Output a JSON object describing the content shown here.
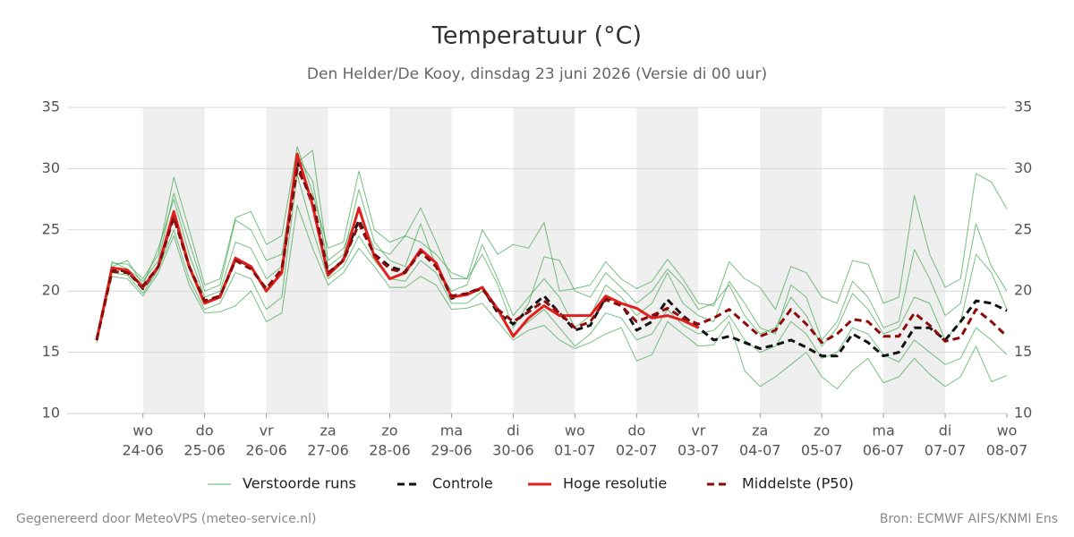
{
  "chart_data": {
    "type": "line",
    "title": "Temperatuur (°C)",
    "subtitle": "Den Helder/De Kooy, dinsdag 23 juni 2026 (Versie di 00 uur)",
    "footer_left": "Gegenereerd door MeteoVPS (meteo-service.nl)",
    "footer_right": "Bron: ECMWF AIFS/KNMI Ens",
    "categories": [
      null,
      null,
      null,
      "24-06",
      null,
      null,
      null,
      "25-06",
      null,
      null,
      null,
      "26-06",
      null,
      null,
      null,
      "27-06",
      null,
      null,
      null,
      "28-06",
      null,
      null,
      null,
      "29-06",
      null,
      null,
      null,
      "30-06",
      null,
      null,
      null,
      "01-07",
      null,
      null,
      null,
      "02-07",
      null,
      null,
      null,
      "03-07",
      null,
      null,
      null,
      "04-07",
      null,
      null,
      null,
      "05-07",
      null,
      null,
      null,
      "06-07",
      null,
      null,
      null,
      "07-07",
      null,
      null,
      null,
      "08-07"
    ],
    "weekdays": [
      null,
      null,
      null,
      "wo",
      null,
      null,
      null,
      "do",
      null,
      null,
      null,
      "vr",
      null,
      null,
      null,
      "za",
      null,
      null,
      null,
      "zo",
      null,
      null,
      null,
      "ma",
      null,
      null,
      null,
      "di",
      null,
      null,
      null,
      "wo",
      null,
      null,
      null,
      "do",
      null,
      null,
      null,
      "vr",
      null,
      null,
      null,
      "za",
      null,
      null,
      null,
      "zo",
      null,
      null,
      null,
      "ma",
      null,
      null,
      null,
      "di",
      null,
      null,
      null,
      "wo"
    ],
    "ylim": [
      10,
      35
    ],
    "yticks": [
      10,
      15,
      20,
      25,
      30,
      35
    ],
    "grid": true,
    "ensemble": {
      "name": "Verstoorde runs",
      "color": "#2f9e3f",
      "members": [
        [
          16,
          22.3,
          22.2,
          21,
          23,
          29.3,
          25,
          20.5,
          21,
          26,
          26.5,
          23.8,
          24.5,
          31.8,
          28,
          23.5,
          24,
          29.8,
          25,
          24,
          24.5,
          26.8,
          24,
          21,
          21,
          25,
          23,
          23.8,
          23.5,
          25.6,
          20,
          20.2,
          20.5,
          22.4,
          21,
          20.2,
          20.8,
          22.6,
          21,
          19,
          18.8,
          22.4,
          21,
          20.3,
          18.5,
          22,
          21.5,
          19.5,
          19,
          22.5,
          22.2,
          19,
          19.5,
          27.8,
          23,
          20.3,
          21,
          29.6,
          28.9,
          26.7
        ],
        [
          15.8,
          21.2,
          21,
          19.6,
          21.5,
          24.5,
          20.5,
          18.2,
          18.3,
          18.8,
          20,
          17.5,
          18.2,
          27,
          23.5,
          20.5,
          21.5,
          23.5,
          22,
          20.3,
          20.3,
          21.2,
          20.5,
          18.5,
          18.6,
          19,
          17.5,
          16,
          16.8,
          17.2,
          16,
          15.3,
          15.8,
          16.5,
          17,
          14.3,
          14.8,
          17.5,
          16.5,
          15.5,
          15.6,
          17.5,
          13.5,
          12.2,
          13,
          14,
          15,
          13,
          12,
          13.5,
          14.5,
          12.5,
          13,
          14.5,
          13.2,
          12.2,
          13,
          15.5,
          12.6,
          13.1
        ],
        [
          16.2,
          22,
          22.5,
          20.5,
          23.5,
          27.5,
          23,
          19.5,
          20,
          24,
          23.5,
          21,
          22,
          31,
          29,
          22,
          23,
          28.3,
          24,
          22.5,
          22,
          25.5,
          22,
          20,
          20.5,
          23.8,
          21,
          18,
          19.5,
          21,
          19.5,
          17,
          18,
          20.5,
          19.5,
          18,
          19,
          21.5,
          19,
          18,
          17.5,
          20.8,
          19,
          17,
          16.5,
          20.5,
          19.5,
          16,
          17.5,
          20.8,
          19.5,
          17,
          17.5,
          23.4,
          21,
          18,
          19,
          25.5,
          22,
          20
        ],
        [
          15.9,
          21.5,
          21.3,
          19.8,
          21.8,
          25,
          21,
          18.5,
          19,
          21.5,
          21,
          18.5,
          19.5,
          29.5,
          25,
          21,
          22,
          24.5,
          22.5,
          21,
          20.8,
          22.5,
          21.5,
          19,
          19,
          20,
          18.5,
          16.5,
          17.5,
          18.5,
          17,
          15.5,
          16.5,
          18.2,
          17.8,
          16,
          16.5,
          18.5,
          17.2,
          16.5,
          16.8,
          18,
          16,
          15,
          15.5,
          17.5,
          16.5,
          14.5,
          15,
          17,
          16.5,
          14.8,
          14.2,
          16,
          15,
          14,
          14.5,
          17,
          16,
          14.8
        ],
        [
          16,
          22.4,
          21.8,
          20.8,
          22.5,
          28,
          24,
          20,
          20.5,
          25.8,
          25,
          22.5,
          23,
          30.5,
          31.5,
          22.5,
          23.5,
          26.5,
          23.5,
          23,
          24.5,
          24,
          23,
          21.5,
          21,
          23,
          20.5,
          17,
          19,
          22.8,
          22.5,
          20,
          19.5,
          21.5,
          20.3,
          19,
          20,
          21.8,
          20.5,
          18.5,
          19,
          20.5,
          18,
          16.5,
          17,
          19.5,
          18,
          15.5,
          17,
          19.8,
          18.5,
          16.5,
          17,
          19.5,
          19,
          16,
          17.5,
          23,
          21.5,
          18.5
        ]
      ]
    },
    "series": [
      {
        "name": "Controle",
        "color": "#111111",
        "line_style": "dashed",
        "values": [
          16,
          21.8,
          21.6,
          20.2,
          22,
          26.3,
          22,
          19,
          19.6,
          22.6,
          22,
          20,
          21.5,
          30.5,
          27,
          21.3,
          22.6,
          25.8,
          23,
          22,
          21.6,
          23.3,
          22.3,
          19.4,
          19.8,
          20.3,
          18.2,
          17.3,
          18.5,
          19.6,
          18.2,
          16.8,
          17.2,
          19.5,
          19,
          16.8,
          17.5,
          19.3,
          18,
          17,
          16,
          16.3,
          15.8,
          15.3,
          15.6,
          16,
          15.4,
          14.7,
          14.7,
          16.5,
          15.8,
          14.7,
          15,
          17,
          17,
          16,
          17.5,
          19.2,
          19,
          18.4
        ]
      },
      {
        "name": "Hoge resolutie",
        "color": "#e0201c",
        "line_style": "solid",
        "values": [
          16,
          21.9,
          21.7,
          20.3,
          22,
          26.5,
          22,
          19,
          19.5,
          22.7,
          22,
          20,
          21.5,
          31.2,
          27,
          21.3,
          22.5,
          26.8,
          22.8,
          21,
          21.5,
          23.4,
          22.3,
          19.5,
          19.7,
          20.3,
          18.5,
          16.3,
          17.8,
          18.8,
          18,
          18,
          18,
          19.6,
          19,
          18.6,
          17.8,
          18,
          17.6,
          17,
          null,
          null,
          null,
          null,
          null,
          null,
          null,
          null,
          null,
          null,
          null,
          null,
          null,
          null,
          null,
          null,
          null,
          null,
          null,
          null
        ]
      },
      {
        "name": "Middelste (P50)",
        "color": "#8b0a0a",
        "line_style": "dashed",
        "values": [
          16,
          21.6,
          21.5,
          20.4,
          22,
          26,
          22,
          19.2,
          19.6,
          22.5,
          21.8,
          20.2,
          21.8,
          30,
          27.5,
          21.5,
          22.5,
          25.5,
          23,
          21.8,
          21.5,
          23.2,
          22,
          19.6,
          19.8,
          20.2,
          18.5,
          17.5,
          18.3,
          19.2,
          18.2,
          17,
          17.5,
          19.3,
          18.8,
          17.5,
          18,
          18.6,
          17.8,
          17.3,
          17.8,
          18.5,
          17.4,
          16.3,
          16.8,
          18.5,
          17.3,
          15.8,
          16.5,
          17.7,
          17.5,
          16.3,
          16.3,
          18.2,
          17.2,
          15.9,
          16.2,
          18.5,
          17.5,
          16.3
        ]
      }
    ]
  }
}
